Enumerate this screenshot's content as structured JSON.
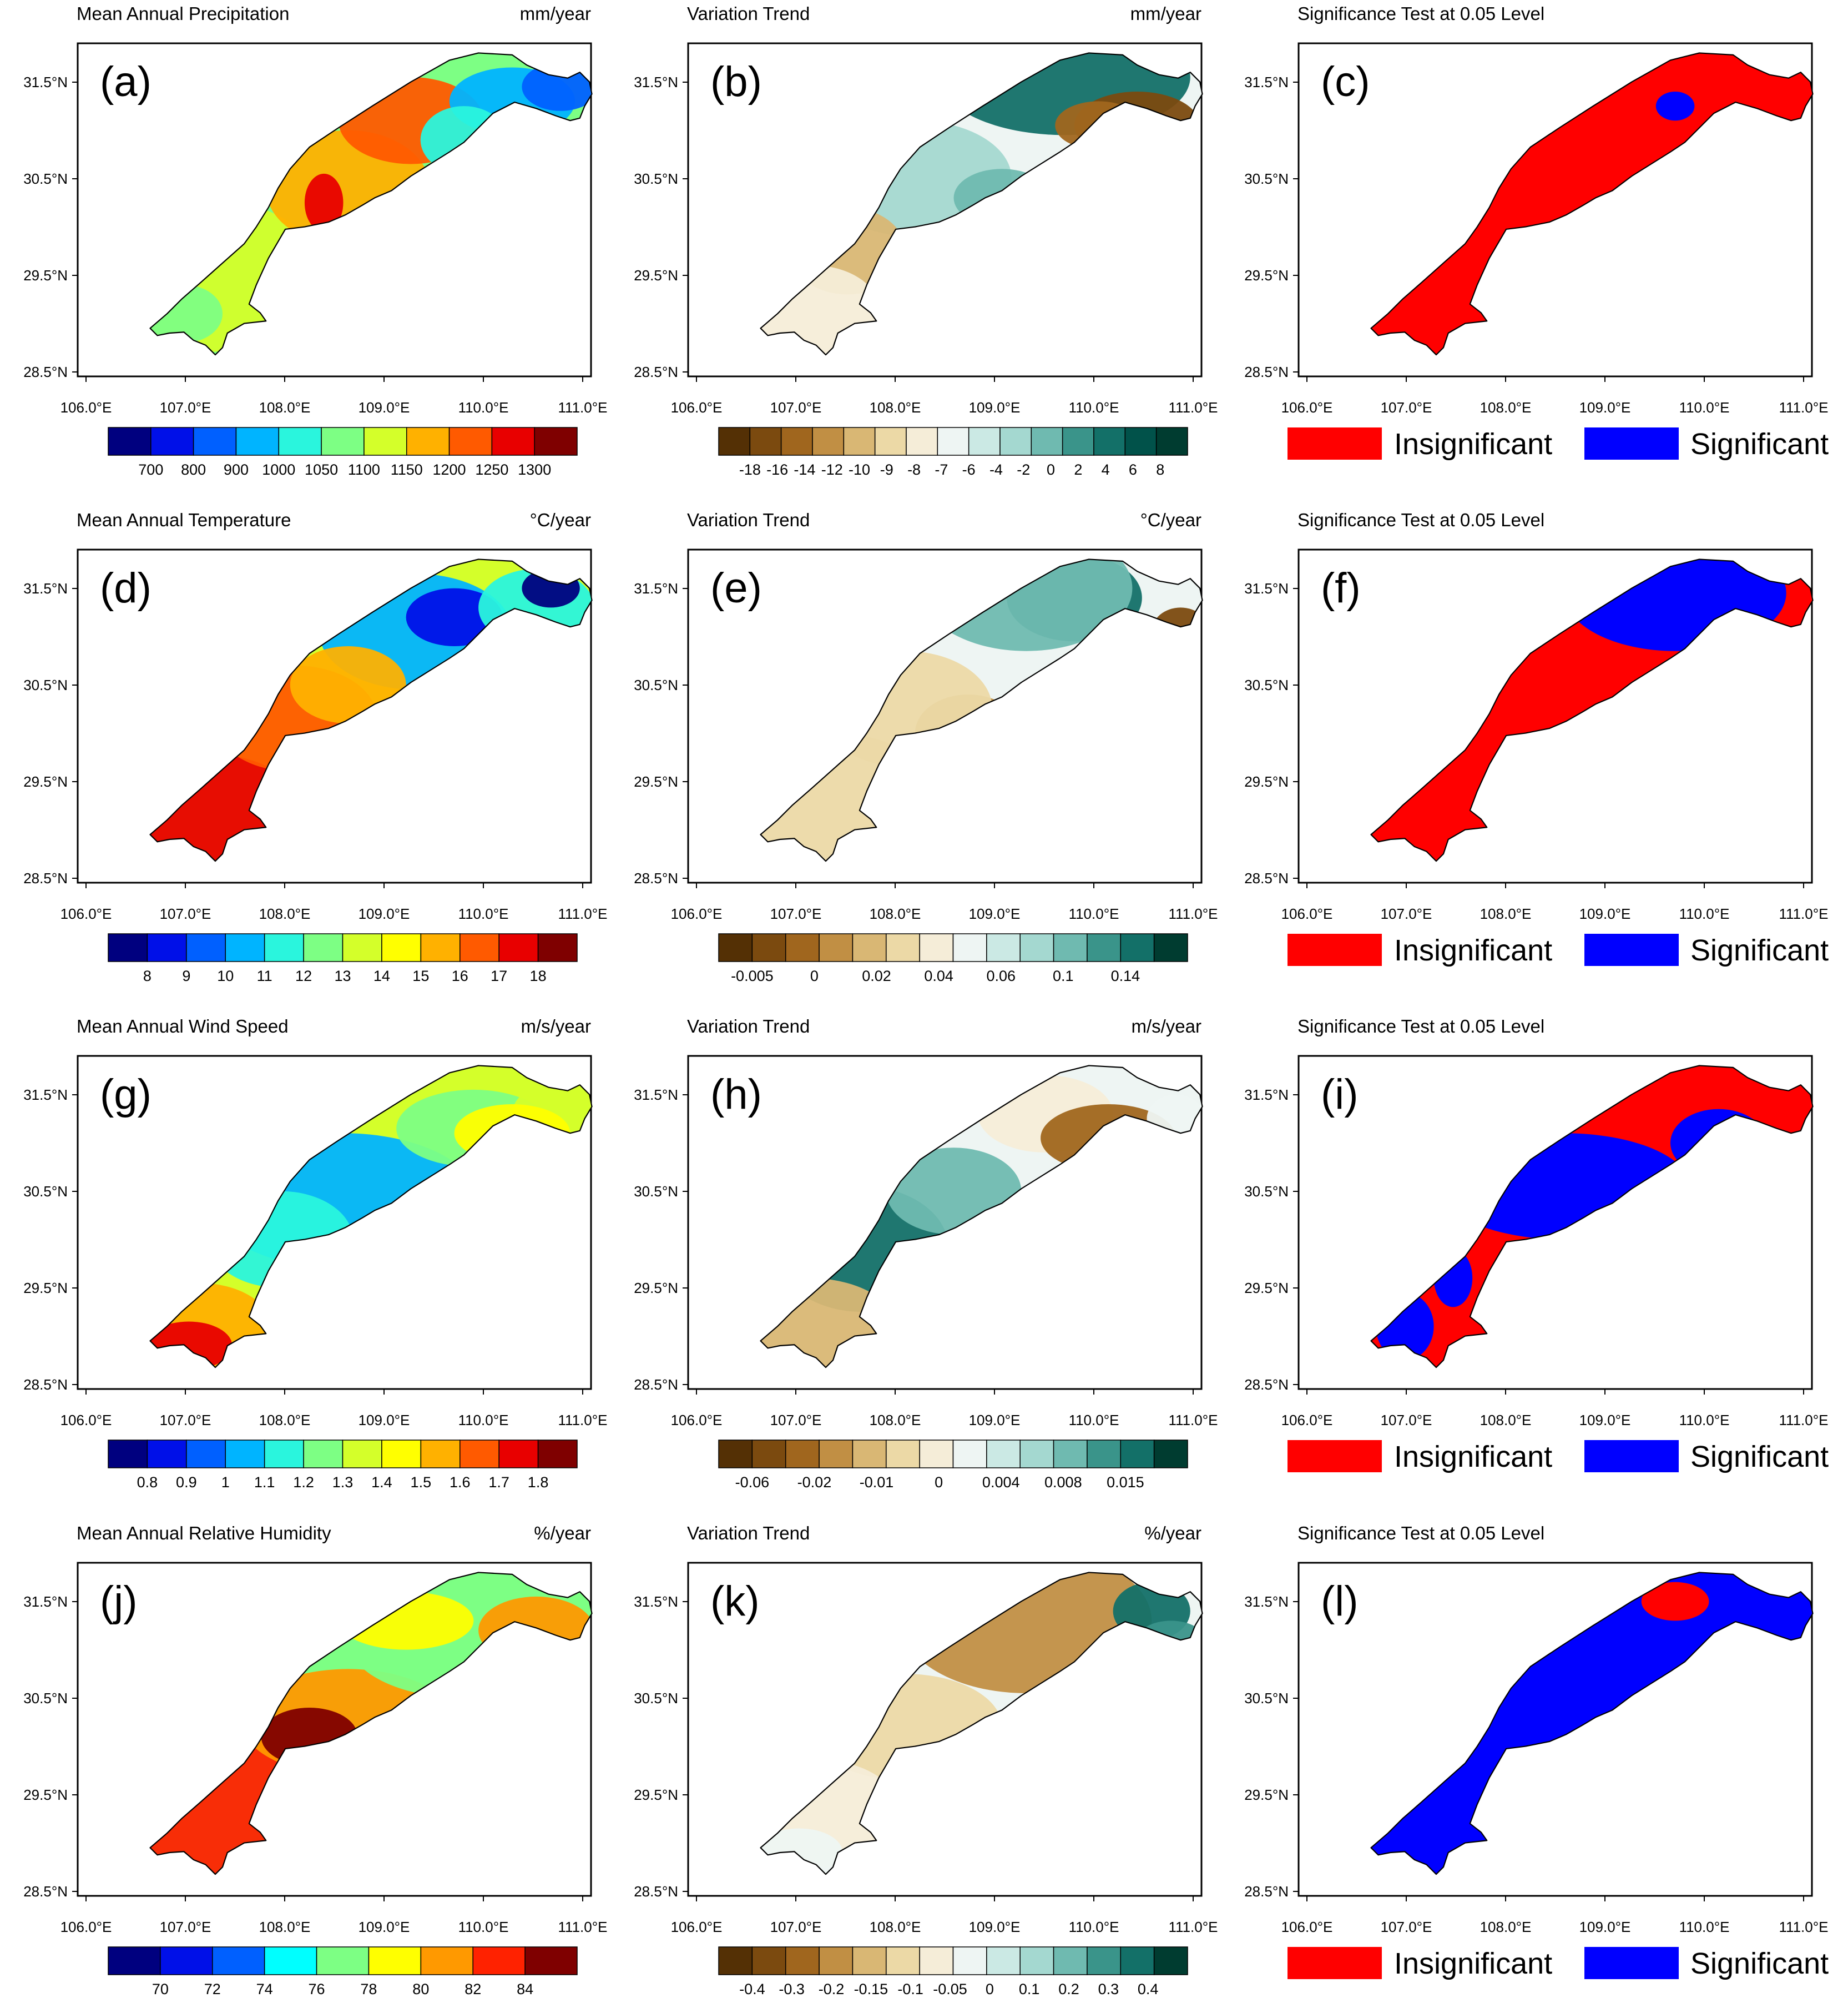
{
  "figure": {
    "rows": [
      {
        "variable": "Mean Annual Precipitation",
        "mean": {
          "label": "(a)",
          "title": "Mean Annual Precipitation",
          "unit": "mm/year",
          "colors": [
            "#00007f",
            "#0010e8",
            "#0060ff",
            "#00b4ff",
            "#2af5dd",
            "#7dff84",
            "#d4ff2a",
            "#ffb100",
            "#ff5a00",
            "#e80000",
            "#7f0000"
          ],
          "ticks": [
            "700",
            "800",
            "900",
            "1000",
            "1050",
            "1100",
            "1150",
            "1200",
            "1250",
            "1300"
          ]
        },
        "trend": {
          "label": "(b)",
          "title": "Variation Trend",
          "unit": "mm/year",
          "colors": [
            "#543005",
            "#7b4a0f",
            "#a0661e",
            "#c18f44",
            "#d9b774",
            "#ecd9a6",
            "#f5edd8",
            "#eef5f3",
            "#cbe9e4",
            "#a4d8d0",
            "#6fbab0",
            "#3a948a",
            "#137068",
            "#01524a",
            "#003c30"
          ],
          "ticks": [
            "-18",
            "-16",
            "-14",
            "-12",
            "-10",
            "-9",
            "-8",
            "-7",
            "-6",
            "-4",
            "-2",
            "0",
            "2",
            "4",
            "6",
            "8"
          ]
        },
        "significance": {
          "label": "(c)",
          "title": "Significance Test at 0.05 Level"
        }
      },
      {
        "variable": "Mean Annual Temperature",
        "mean": {
          "label": "(d)",
          "title": "Mean Annual Temperature",
          "unit": "°C/year",
          "colors": [
            "#00007f",
            "#0010e8",
            "#0060ff",
            "#00b4ff",
            "#2af5dd",
            "#7dff84",
            "#d4ff2a",
            "#ffff00",
            "#ffb100",
            "#ff5a00",
            "#e80000",
            "#7f0000"
          ],
          "ticks": [
            "8",
            "9",
            "10",
            "11",
            "12",
            "13",
            "14",
            "15",
            "16",
            "17",
            "18"
          ]
        },
        "trend": {
          "label": "(e)",
          "title": "Variation Trend",
          "unit": "°C/year",
          "colors": [
            "#543005",
            "#7b4a0f",
            "#a0661e",
            "#c18f44",
            "#d9b774",
            "#ecd9a6",
            "#f5edd8",
            "#eef5f3",
            "#cbe9e4",
            "#a4d8d0",
            "#6fbab0",
            "#3a948a",
            "#137068",
            "#003c30"
          ],
          "ticks": [
            "-0.005",
            "0",
            "0.02",
            "0.04",
            "0.06",
            "0.1",
            "0.14"
          ]
        },
        "significance": {
          "label": "(f)",
          "title": "Significance Test at 0.05 Level"
        }
      },
      {
        "variable": "Mean Annual Wind Speed",
        "mean": {
          "label": "(g)",
          "title": "Mean Annual Wind Speed",
          "unit": "m/s/year",
          "colors": [
            "#00007f",
            "#0010e8",
            "#0060ff",
            "#00b4ff",
            "#2af5dd",
            "#7dff84",
            "#d4ff2a",
            "#ffff00",
            "#ffb100",
            "#ff5a00",
            "#e80000",
            "#7f0000"
          ],
          "ticks": [
            "0.8",
            "0.9",
            "1",
            "1.1",
            "1.2",
            "1.3",
            "1.4",
            "1.5",
            "1.6",
            "1.7",
            "1.8"
          ]
        },
        "trend": {
          "label": "(h)",
          "title": "Variation Trend",
          "unit": "m/s/year",
          "colors": [
            "#543005",
            "#7b4a0f",
            "#a0661e",
            "#c18f44",
            "#d9b774",
            "#ecd9a6",
            "#f5edd8",
            "#eef5f3",
            "#cbe9e4",
            "#a4d8d0",
            "#6fbab0",
            "#3a948a",
            "#137068",
            "#003c30"
          ],
          "ticks": [
            "-0.06",
            "-0.02",
            "-0.01",
            "0",
            "0.004",
            "0.008",
            "0.015"
          ]
        },
        "significance": {
          "label": "(i)",
          "title": "Significance Test at 0.05 Level"
        }
      },
      {
        "variable": "Mean Annual Relative Humidity",
        "mean": {
          "label": "(j)",
          "title": "Mean Annual Relative Humidity",
          "unit": "%/year",
          "colors": [
            "#00007f",
            "#0010e8",
            "#0060ff",
            "#00ffff",
            "#7dff84",
            "#ffff00",
            "#ff9900",
            "#ff2200",
            "#7f0000"
          ],
          "ticks": [
            "70",
            "72",
            "74",
            "76",
            "78",
            "80",
            "82",
            "84"
          ]
        },
        "trend": {
          "label": "(k)",
          "title": "Variation Trend",
          "unit": "%/year",
          "colors": [
            "#543005",
            "#7b4a0f",
            "#a0661e",
            "#c18f44",
            "#d9b774",
            "#ecd9a6",
            "#f5edd8",
            "#eef5f3",
            "#cbe9e4",
            "#a4d8d0",
            "#6fbab0",
            "#3a948a",
            "#137068",
            "#003c30"
          ],
          "ticks": [
            "-0.4",
            "-0.3",
            "-0.2",
            "-0.15",
            "-0.1",
            "-0.05",
            "0",
            "0.1",
            "0.2",
            "0.3",
            "0.4"
          ]
        },
        "significance": {
          "label": "(l)",
          "title": "Significance Test at 0.05 Level"
        }
      }
    ],
    "axes": {
      "lon_ticks": [
        "106.0°E",
        "107.0°E",
        "108.0°E",
        "109.0°E",
        "110.0°E",
        "111.0°E"
      ],
      "lat_ticks": [
        "31.5°N",
        "30.5°N",
        "29.5°N",
        "28.5°N"
      ]
    },
    "legend": {
      "insignificant": {
        "label": "Insignificant",
        "color": "#ff0000"
      },
      "significant": {
        "label": "Significant",
        "color": "#0000ff"
      }
    }
  }
}
